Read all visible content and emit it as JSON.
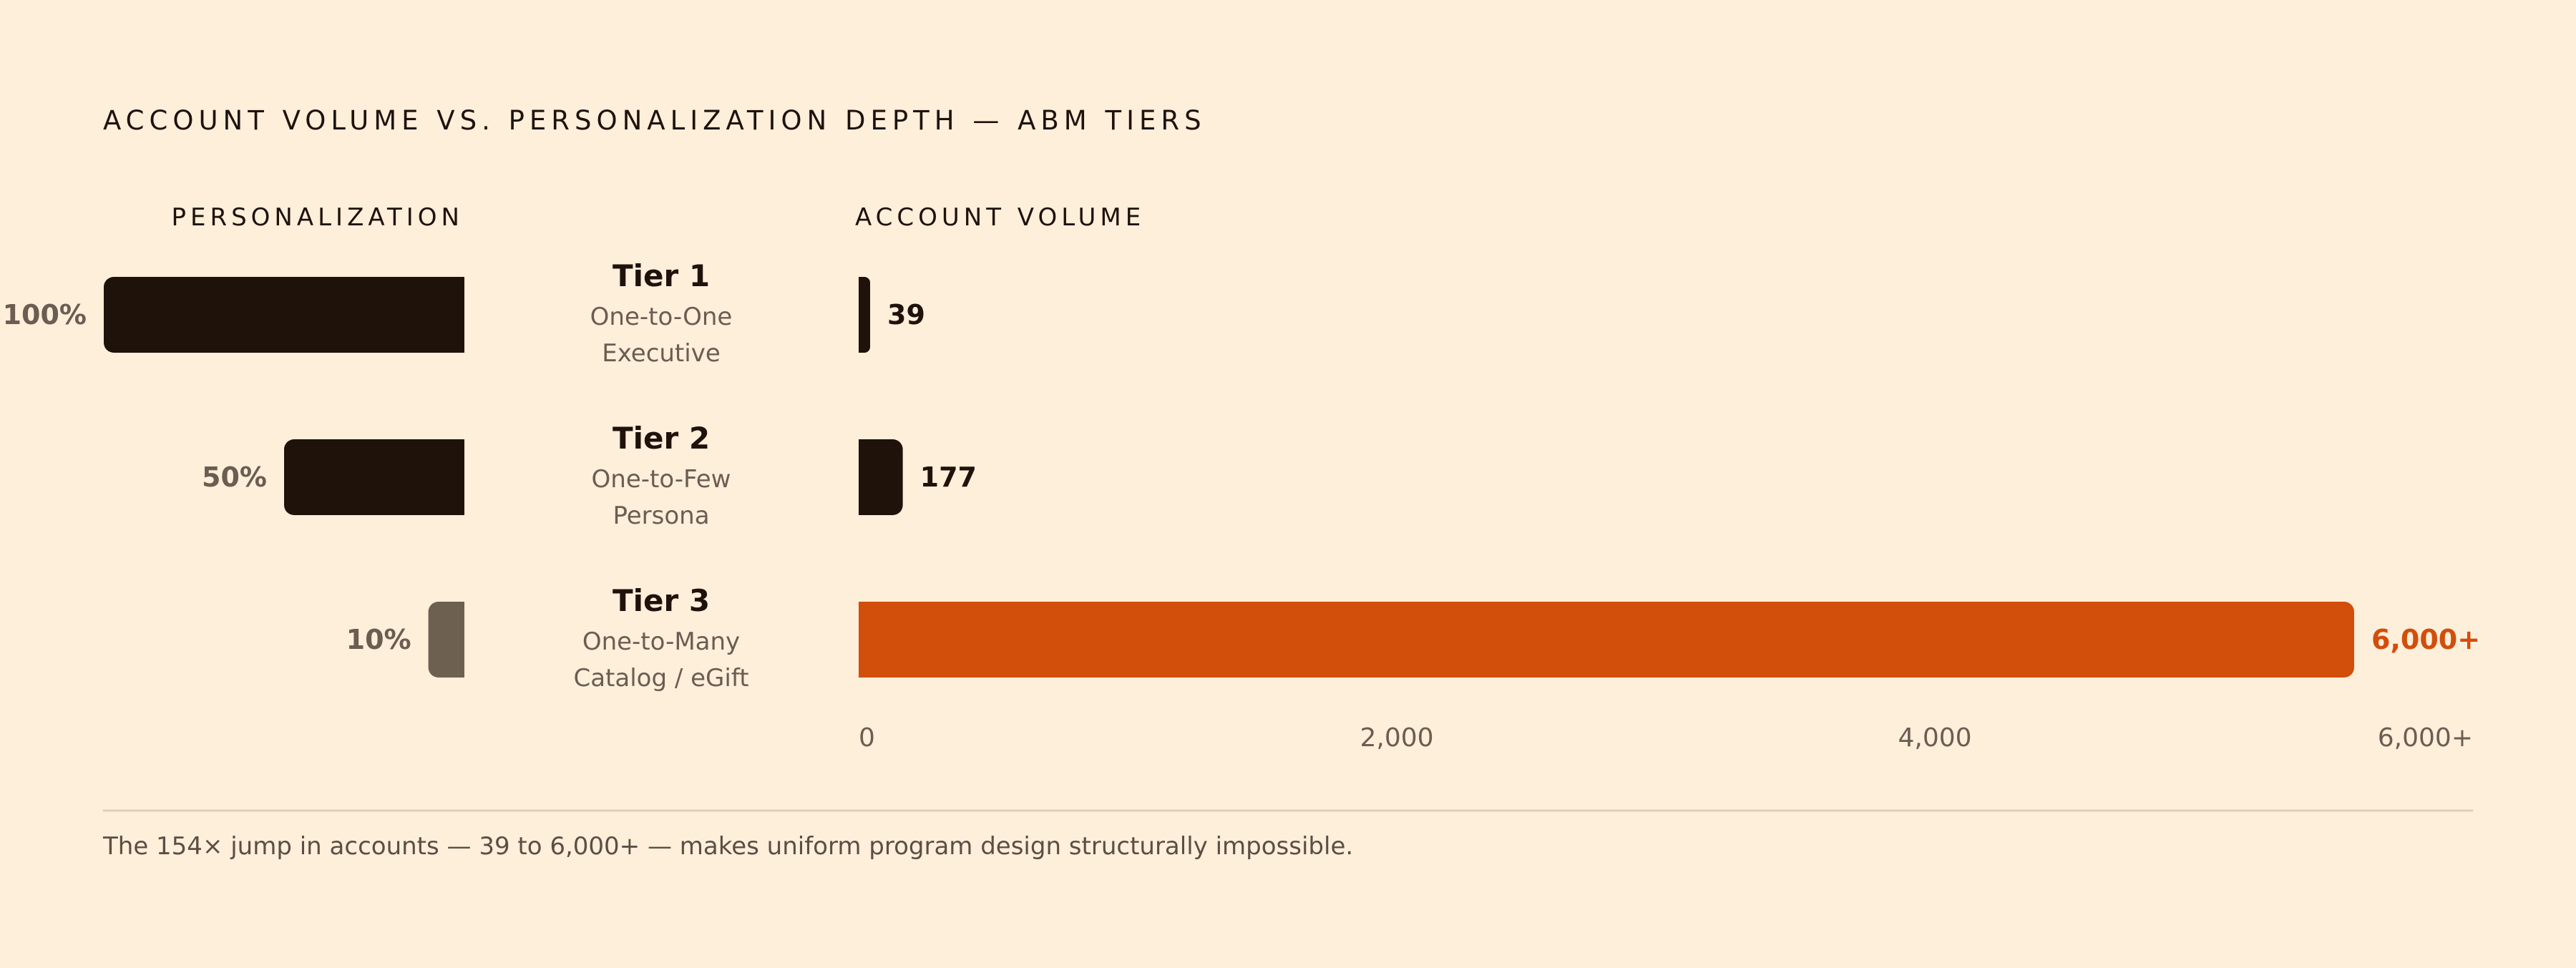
{
  "chart_data": {
    "type": "bar",
    "title": "ACCOUNT VOLUME VS. PERSONALIZATION DEPTH — ABM TIERS",
    "left_heading": "PERSONALIZATION",
    "right_heading": "ACCOUNT VOLUME",
    "tiers": [
      {
        "name": "Tier 1",
        "sub1": "One-to-One",
        "sub2": "Executive",
        "personalization": 100,
        "personalization_label": "100%",
        "accounts": 39,
        "accounts_label": "39"
      },
      {
        "name": "Tier 2",
        "sub1": "One-to-Few",
        "sub2": "Persona",
        "personalization": 50,
        "personalization_label": "50%",
        "accounts": 177,
        "accounts_label": "177"
      },
      {
        "name": "Tier 3",
        "sub1": "One-to-Many",
        "sub2": "Catalog / eGift",
        "personalization": 10,
        "personalization_label": "10%",
        "accounts": 6000,
        "accounts_label": "6,000+"
      }
    ],
    "x_ticks": [
      {
        "value": 0,
        "label": "0"
      },
      {
        "value": 2000,
        "label": "2,000"
      },
      {
        "value": 4000,
        "label": "4,000"
      },
      {
        "value": 6000,
        "label": "6,000+"
      }
    ],
    "xlim": [
      0,
      6000
    ],
    "personalization_lim": [
      0,
      100
    ],
    "colors": {
      "dark": "#1F120B",
      "muted": "#6E6050",
      "accent": "#D24E0B",
      "label_muted": "#6B5D51"
    }
  },
  "footnote": "The 154× jump in accounts — 39 to 6,000+ — makes uniform program design structurally impossible."
}
